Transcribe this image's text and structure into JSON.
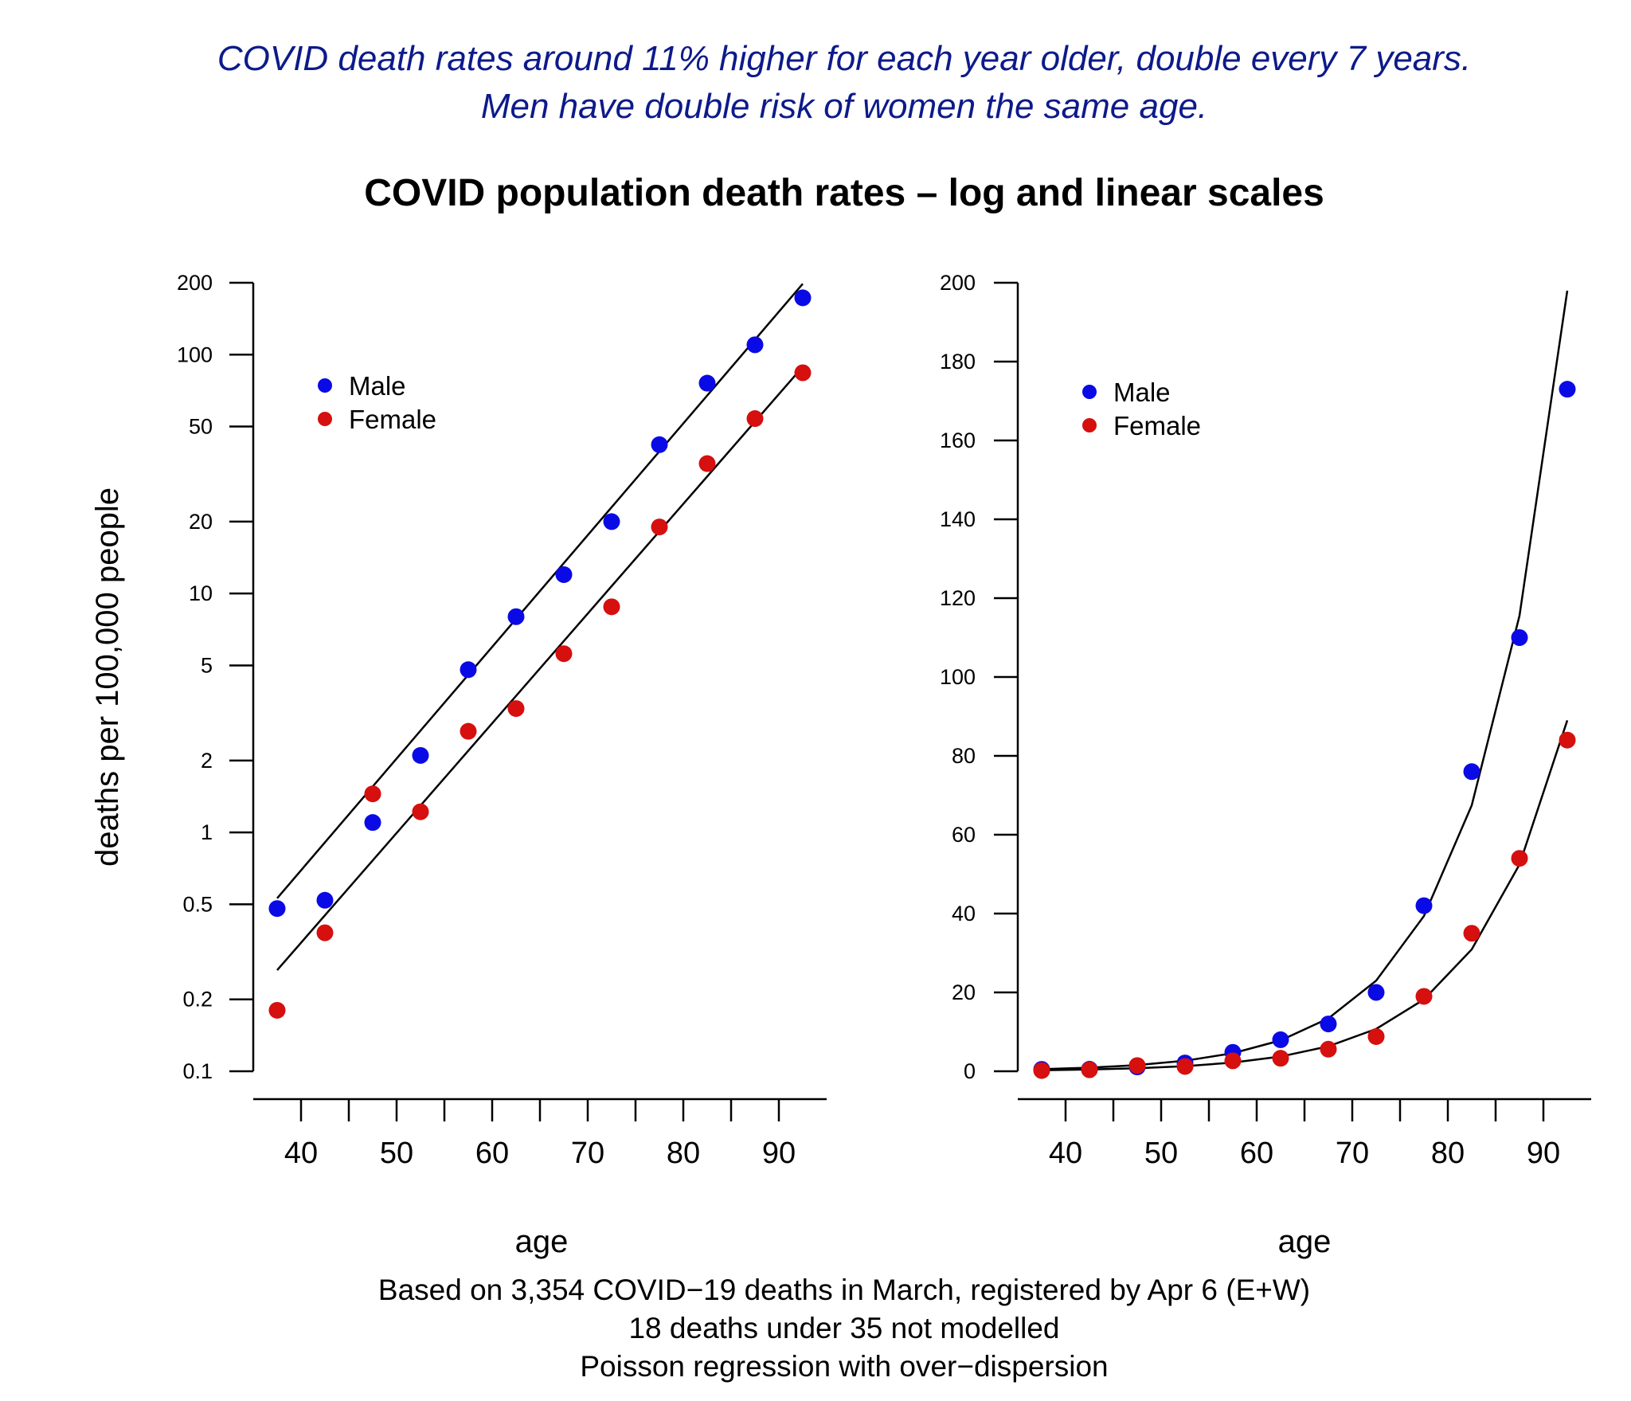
{
  "headline": {
    "line1": "COVID death rates around 11% higher for each year older, double every 7 years.",
    "line2": "Men have double risk of women the same age."
  },
  "title": "COVID population death rates – log and linear scales",
  "caption": {
    "line1": "Based on 3,354 COVID−19 deaths in March, registered by Apr 6 (E+W)",
    "line2": "18 deaths under 35 not modelled",
    "line3": "Poisson regression with over−dispersion"
  },
  "colors": {
    "male": "#0a0ae6",
    "female": "#d60f0f",
    "fit": "#000000"
  },
  "chart_data": [
    {
      "type": "scatter",
      "scale": "log",
      "title": "COVID population death rates – log and linear scales",
      "xlabel": "age",
      "ylabel": "deaths per 100,000 people",
      "xlim": [
        35,
        95
      ],
      "ylim": [
        0.1,
        200
      ],
      "xticks": [
        40,
        50,
        60,
        70,
        80,
        90
      ],
      "yticks": [
        200,
        100,
        50,
        20,
        10,
        5,
        2,
        1,
        0.5,
        0.2,
        0.1
      ],
      "ytick_labels": [
        "200",
        "100",
        "50",
        "20",
        "10",
        "5",
        "2",
        "1",
        "0.5",
        "0.2",
        "0.1"
      ],
      "legend": [
        "Male",
        "Female"
      ],
      "legend_position": "top-left",
      "x": [
        37.5,
        42.5,
        47.5,
        52.5,
        57.5,
        62.5,
        67.5,
        72.5,
        77.5,
        82.5,
        87.5,
        92.5
      ],
      "series": [
        {
          "name": "Male",
          "color": "#0a0ae6",
          "values": [
            0.48,
            0.52,
            1.1,
            2.1,
            4.8,
            8.0,
            12.0,
            20.0,
            42.0,
            76.0,
            110.0,
            173.0
          ]
        },
        {
          "name": "Female",
          "color": "#d60f0f",
          "values": [
            0.18,
            0.38,
            1.45,
            1.22,
            2.65,
            3.3,
            5.6,
            8.8,
            19.0,
            35.0,
            54.0,
            84.0
          ]
        }
      ],
      "fits": [
        {
          "name": "Male fit",
          "x": [
            37.5,
            92.5
          ],
          "values": [
            0.53,
            198
          ]
        },
        {
          "name": "Female fit",
          "x": [
            37.5,
            92.5
          ],
          "values": [
            0.265,
            89
          ]
        }
      ]
    },
    {
      "type": "scatter",
      "scale": "linear",
      "xlabel": "age",
      "ylabel": "",
      "xlim": [
        35,
        95
      ],
      "ylim": [
        0,
        200
      ],
      "xticks": [
        40,
        50,
        60,
        70,
        80,
        90
      ],
      "yticks": [
        0,
        20,
        40,
        60,
        80,
        100,
        120,
        140,
        160,
        180,
        200
      ],
      "ytick_labels": [
        "0",
        "20",
        "40",
        "60",
        "80",
        "100",
        "120",
        "140",
        "160",
        "180",
        "200"
      ],
      "legend": [
        "Male",
        "Female"
      ],
      "legend_position": "top-left",
      "x": [
        37.5,
        42.5,
        47.5,
        52.5,
        57.5,
        62.5,
        67.5,
        72.5,
        77.5,
        82.5,
        87.5,
        92.5
      ],
      "series": [
        {
          "name": "Male",
          "color": "#0a0ae6",
          "values": [
            0.48,
            0.52,
            1.1,
            2.1,
            4.8,
            8.0,
            12.0,
            20.0,
            42.0,
            76.0,
            110.0,
            173.0
          ]
        },
        {
          "name": "Female",
          "color": "#d60f0f",
          "values": [
            0.18,
            0.38,
            1.45,
            1.22,
            2.65,
            3.3,
            5.6,
            8.8,
            19.0,
            35.0,
            54.0,
            84.0
          ]
        }
      ],
      "fits": [
        {
          "name": "Male fit",
          "x": [
            37.5,
            92.5
          ],
          "values": [
            0.53,
            198
          ]
        },
        {
          "name": "Female fit",
          "x": [
            37.5,
            92.5
          ],
          "values": [
            0.265,
            89
          ]
        }
      ]
    }
  ]
}
